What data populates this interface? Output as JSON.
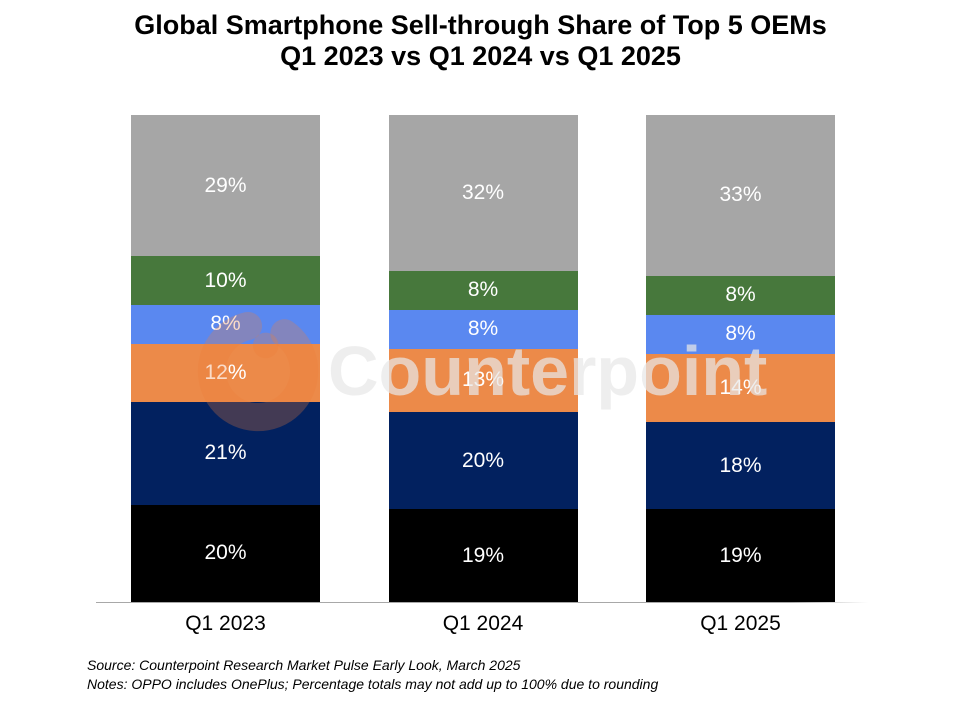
{
  "title": {
    "line1": "Global Smartphone Sell-through Share of Top 5 OEMs",
    "line2": "Q1 2023 vs Q1 2024 vs Q1 2025"
  },
  "watermark": {
    "text": "Counterpoint",
    "logo": "counterpoint-swirl-logo",
    "logo_color": "#ec7d39"
  },
  "footer": {
    "source": "Source: Counterpoint Research Market Pulse Early Look, March 2025",
    "notes": "Notes: OPPO includes OnePlus; Percentage totals may not add up to 100% due to rounding"
  },
  "chart_data": {
    "type": "bar",
    "stacked": true,
    "title": "Global Smartphone Sell-through Share of Top 5 OEMs Q1 2023 vs Q1 2024 vs Q1 2025",
    "categories": [
      "Q1 2023",
      "Q1 2024",
      "Q1 2025"
    ],
    "value_suffix": "%",
    "value_labels": "inside segments, white text",
    "legend": "none",
    "ylim": [
      0,
      100
    ],
    "grid": false,
    "series_order": "bottom-to-top",
    "series": [
      {
        "name": "segment-black-bottom",
        "color": "#000000",
        "values": [
          20,
          19,
          19
        ]
      },
      {
        "name": "segment-navy",
        "color": "#02215f",
        "values": [
          21,
          20,
          18
        ]
      },
      {
        "name": "segment-orange",
        "color": "#ec8a49",
        "values": [
          12,
          13,
          14
        ]
      },
      {
        "name": "segment-blue",
        "color": "#5a88f0",
        "values": [
          8,
          8,
          8
        ]
      },
      {
        "name": "segment-green",
        "color": "#47783c",
        "values": [
          10,
          8,
          8
        ]
      },
      {
        "name": "segment-gray-top",
        "color": "#a6a6a6",
        "values": [
          29,
          32,
          33
        ]
      }
    ]
  }
}
